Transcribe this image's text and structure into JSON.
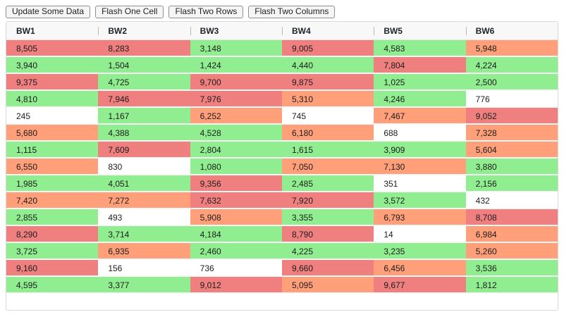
{
  "toolbar": {
    "buttons": [
      {
        "id": "update-some-data",
        "label": "Update Some Data"
      },
      {
        "id": "flash-one-cell",
        "label": "Flash One Cell"
      },
      {
        "id": "flash-two-rows",
        "label": "Flash Two Rows"
      },
      {
        "id": "flash-two-columns",
        "label": "Flash Two Columns"
      }
    ]
  },
  "grid": {
    "columns": [
      "BW1",
      "BW2",
      "BW3",
      "BW4",
      "BW5",
      "BW6"
    ],
    "palette": {
      "r": "#f08080",
      "g": "#90ee90",
      "o": "#ffa07a",
      "w": "#ffffff"
    },
    "rows": [
      {
        "values": [
          "8,505",
          "8,283",
          "3,148",
          "9,005",
          "4,583",
          "5,948"
        ],
        "colors": [
          "r",
          "r",
          "g",
          "r",
          "g",
          "o"
        ]
      },
      {
        "values": [
          "3,940",
          "1,504",
          "1,424",
          "4,440",
          "7,804",
          "4,224"
        ],
        "colors": [
          "g",
          "g",
          "g",
          "g",
          "r",
          "g"
        ]
      },
      {
        "values": [
          "9,375",
          "4,725",
          "9,700",
          "9,875",
          "1,025",
          "2,500"
        ],
        "colors": [
          "r",
          "g",
          "r",
          "r",
          "g",
          "g"
        ]
      },
      {
        "values": [
          "4,810",
          "7,946",
          "7,976",
          "5,310",
          "4,246",
          "776"
        ],
        "colors": [
          "g",
          "r",
          "r",
          "o",
          "g",
          "w"
        ]
      },
      {
        "values": [
          "245",
          "1,167",
          "6,252",
          "745",
          "7,467",
          "9,052"
        ],
        "colors": [
          "w",
          "g",
          "o",
          "w",
          "o",
          "r"
        ]
      },
      {
        "values": [
          "5,680",
          "4,388",
          "4,528",
          "6,180",
          "688",
          "7,328"
        ],
        "colors": [
          "o",
          "g",
          "g",
          "o",
          "w",
          "o"
        ]
      },
      {
        "values": [
          "1,115",
          "7,609",
          "2,804",
          "1,615",
          "3,909",
          "5,604"
        ],
        "colors": [
          "g",
          "r",
          "g",
          "g",
          "g",
          "o"
        ]
      },
      {
        "values": [
          "6,550",
          "830",
          "1,080",
          "7,050",
          "7,130",
          "3,880"
        ],
        "colors": [
          "o",
          "w",
          "g",
          "o",
          "o",
          "g"
        ]
      },
      {
        "values": [
          "1,985",
          "4,051",
          "9,356",
          "2,485",
          "351",
          "2,156"
        ],
        "colors": [
          "g",
          "g",
          "r",
          "g",
          "w",
          "g"
        ]
      },
      {
        "values": [
          "7,420",
          "7,272",
          "7,632",
          "7,920",
          "3,572",
          "432"
        ],
        "colors": [
          "o",
          "o",
          "r",
          "r",
          "g",
          "w"
        ]
      },
      {
        "values": [
          "2,855",
          "493",
          "5,908",
          "3,355",
          "6,793",
          "8,708"
        ],
        "colors": [
          "g",
          "w",
          "o",
          "g",
          "o",
          "r"
        ]
      },
      {
        "values": [
          "8,290",
          "3,714",
          "4,184",
          "8,790",
          "14",
          "6,984"
        ],
        "colors": [
          "r",
          "g",
          "g",
          "r",
          "w",
          "o"
        ]
      },
      {
        "values": [
          "3,725",
          "6,935",
          "2,460",
          "4,225",
          "3,235",
          "5,260"
        ],
        "colors": [
          "g",
          "o",
          "g",
          "g",
          "g",
          "o"
        ]
      },
      {
        "values": [
          "9,160",
          "156",
          "736",
          "9,660",
          "6,456",
          "3,536"
        ],
        "colors": [
          "r",
          "w",
          "w",
          "r",
          "o",
          "g"
        ]
      },
      {
        "values": [
          "4,595",
          "3,377",
          "9,012",
          "5,095",
          "9,677",
          "1,812"
        ],
        "colors": [
          "g",
          "g",
          "r",
          "o",
          "r",
          "g"
        ]
      }
    ]
  }
}
